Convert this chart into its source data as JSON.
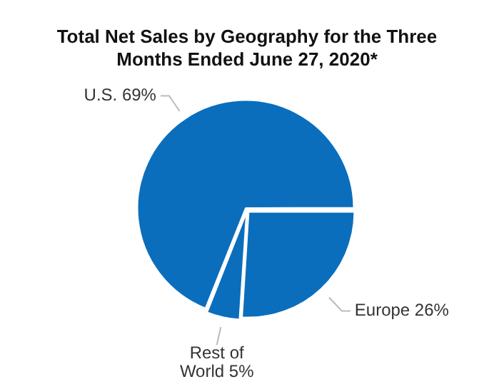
{
  "chart_data": {
    "type": "pie",
    "title": "Total Net Sales by Geography for the Three Months Ended June 27, 2020*",
    "categories": [
      "U.S.",
      "Europe",
      "Rest of World"
    ],
    "values": [
      69,
      26,
      5
    ],
    "value_labels": [
      "69%",
      "26%",
      "5%"
    ],
    "colors": [
      "#0a6ebd",
      "#0a6ebd",
      "#0a6ebd"
    ],
    "legend": false
  }
}
